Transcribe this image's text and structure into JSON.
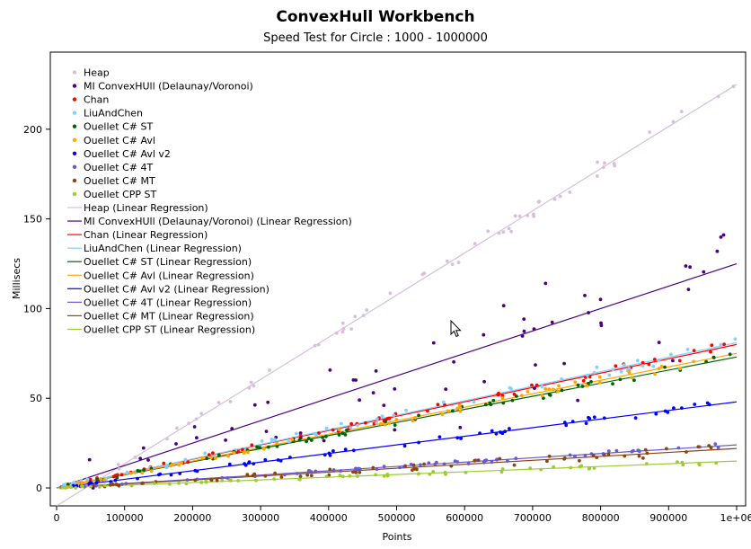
{
  "app_title": "ConvexHull Workbench",
  "chart_data": {
    "type": "scatter",
    "title": "ConvexHull Workbench",
    "subtitle": "Speed Test for Circle : 1000 - 1000000",
    "xlabel": "Points",
    "ylabel": "Millisecs",
    "xlim": [
      0,
      1000000
    ],
    "ylim": [
      -10,
      243
    ],
    "x_ticks": [
      0,
      100000,
      200000,
      300000,
      400000,
      500000,
      600000,
      700000,
      800000,
      900000,
      1000000
    ],
    "x_tick_labels": [
      "0",
      "100000",
      "200000",
      "300000",
      "400000",
      "500000",
      "600000",
      "700000",
      "800000",
      "900000",
      "1e+06"
    ],
    "y_ticks": [
      0,
      50,
      100,
      150,
      200
    ],
    "y_tick_labels": [
      "0",
      "50",
      "100",
      "150",
      "200"
    ],
    "grid": false,
    "legend_position": "top-left",
    "series": [
      {
        "name": "Heap",
        "color": "#d8bfd8",
        "slope_ms_per_million": 235,
        "intercept_ms": -10,
        "noise": 4
      },
      {
        "name": "MI ConvexHUll (Delaunay/Voronoi)",
        "color": "#4b0082",
        "slope_ms_per_million": 125,
        "intercept_ms": 0,
        "noise": 22
      },
      {
        "name": "Chan",
        "color": "#ff0000",
        "slope_ms_per_million": 80,
        "intercept_ms": 0,
        "noise": 2
      },
      {
        "name": "LiuAndChen",
        "color": "#87cefa",
        "slope_ms_per_million": 81,
        "intercept_ms": 0,
        "noise": 3
      },
      {
        "name": "Ouellet C# ST",
        "color": "#006400",
        "slope_ms_per_million": 73,
        "intercept_ms": 0,
        "noise": 2
      },
      {
        "name": "Ouellet C# Avl",
        "color": "#ffa500",
        "slope_ms_per_million": 75,
        "intercept_ms": 0,
        "noise": 2
      },
      {
        "name": "Ouellet C# Avl v2",
        "color": "#0000ff",
        "slope_ms_per_million": 48,
        "intercept_ms": 0,
        "noise": 1.5
      },
      {
        "name": "Ouellet C# 4T",
        "color": "#6a5acd",
        "slope_ms_per_million": 24,
        "intercept_ms": 0,
        "noise": 1
      },
      {
        "name": "Ouellet C# MT",
        "color": "#8b4513",
        "slope_ms_per_million": 22,
        "intercept_ms": 0,
        "noise": 2
      },
      {
        "name": "Ouellet CPP ST",
        "color": "#9acd32",
        "slope_ms_per_million": 15,
        "intercept_ms": 0,
        "noise": 1
      }
    ],
    "legend_entries": [
      "Heap",
      "MI ConvexHUll (Delaunay/Voronoi)",
      "Chan",
      "LiuAndChen",
      "Ouellet C# ST",
      "Ouellet C# Avl",
      "Ouellet C# Avl v2",
      "Ouellet C# 4T",
      "Ouellet C# MT",
      "Ouellet CPP ST",
      "Heap (Linear Regression)",
      "MI ConvexHUll (Delaunay/Voronoi) (Linear Regression)",
      "Chan (Linear Regression)",
      "LiuAndChen (Linear Regression)",
      "Ouellet C# ST (Linear Regression)",
      "Ouellet C# Avl (Linear Regression)",
      "Ouellet C# Avl v2 (Linear Regression)",
      "Ouellet C# 4T (Linear Regression)",
      "Ouellet C# MT (Linear Regression)",
      "Ouellet CPP ST (Linear Regression)"
    ]
  }
}
